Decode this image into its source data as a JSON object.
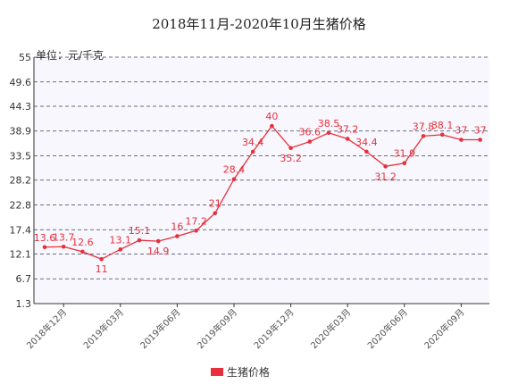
{
  "colors": {
    "series": "#e8303c",
    "plot_bg": "#f7f7fd",
    "grid": "#404060"
  },
  "chart_data": {
    "type": "line",
    "title": "2018年11月-2020年10月生猪价格",
    "unit_label": "单位：元/千克",
    "ylim": [
      1.3,
      55
    ],
    "yticks": [
      "55",
      "49.6",
      "44.3",
      "38.9",
      "33.5",
      "28.2",
      "22.8",
      "17.4",
      "12.1",
      "6.7",
      "1.3"
    ],
    "ytick_values": [
      55,
      49.6,
      44.3,
      38.9,
      33.5,
      28.2,
      22.8,
      17.4,
      12.1,
      6.7,
      1.3
    ],
    "xtick_labels": [
      "2018年12月",
      "2019年03月",
      "2019年06月",
      "2019年09月",
      "2019年12月",
      "2020年03月",
      "2020年06月",
      "2020年09月"
    ],
    "x": [
      "2018年11月",
      "2018年12月",
      "2019年01月",
      "2019年02月",
      "2019年03月",
      "2019年04月",
      "2019年05月",
      "2019年06月",
      "2019年07月",
      "2019年08月",
      "2019年09月",
      "2019年10月",
      "2019年11月",
      "2019年12月",
      "2020年01月",
      "2020年02月",
      "2020年03月",
      "2020年04月",
      "2020年05月",
      "2020年06月",
      "2020年07月",
      "2020年08月",
      "2020年09月",
      "2020年10月"
    ],
    "series": [
      {
        "name": "生猪价格",
        "values": [
          13.6,
          13.7,
          12.6,
          11,
          13.1,
          15.1,
          14.9,
          16,
          17.2,
          21,
          28.4,
          34.4,
          40,
          35.2,
          36.6,
          38.5,
          37.2,
          34.4,
          31.2,
          31.9,
          37.8,
          38.1,
          37,
          37
        ],
        "labels": [
          "13.6",
          "13.7",
          "12.6",
          "11",
          "13.1",
          "15.1",
          "14.9",
          "16",
          "17.2",
          "21",
          "28.4",
          "34.4",
          "40",
          "35.2",
          "36.6",
          "38.5",
          "37.2",
          "34.4",
          "31.2",
          "31.9",
          "37.8",
          "38.1",
          "37",
          "37"
        ]
      }
    ],
    "legend": {
      "position": "bottom",
      "label": "生猪价格"
    },
    "grid": true
  }
}
